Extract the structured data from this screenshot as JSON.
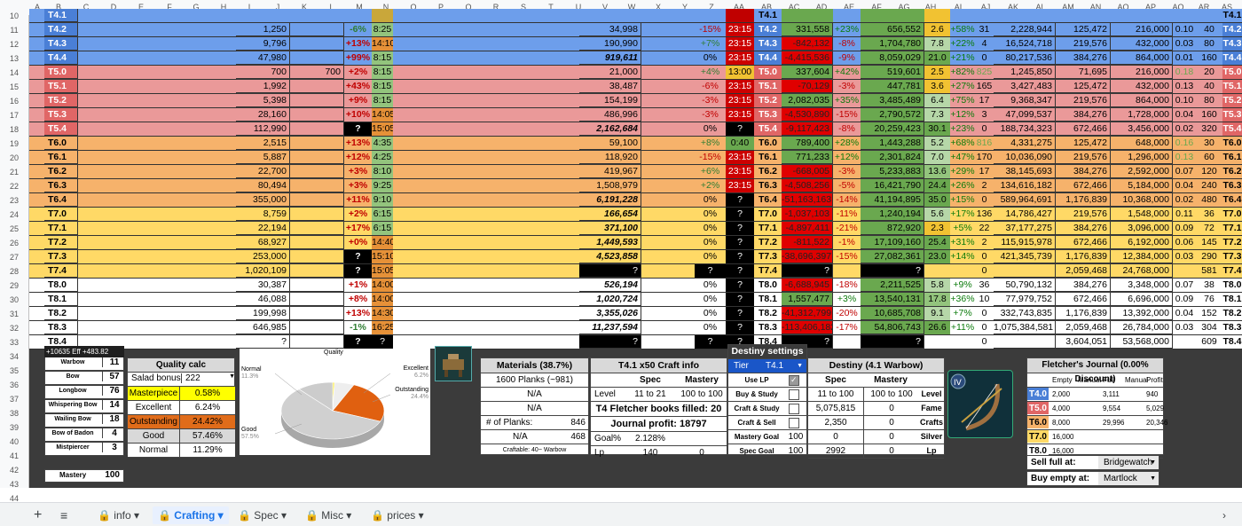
{
  "colheaders": [
    "A",
    "B",
    "C",
    "D",
    "E",
    "F",
    "G",
    "H",
    "I",
    "J",
    "K",
    "L",
    "M",
    "N",
    "O",
    "P",
    "Q",
    "R",
    "S",
    "T",
    "U",
    "V",
    "W",
    "X",
    "Y",
    "Z",
    "AA",
    "AB",
    "AC",
    "AD",
    "AE",
    "AF",
    "AG",
    "AH",
    "AI",
    "AJ",
    "AK",
    "AL",
    "AM",
    "AN",
    "AO",
    "AP",
    "AQ",
    "AR",
    "AS"
  ],
  "rows": [
    {
      "n": "11",
      "tier": "T4.2",
      "band": "#6d9eeb",
      "i": "1,250",
      "m": "-6%",
      "n2": "8:25",
      "v": "34,998",
      "y": "-15%",
      "z": "23:15",
      "ab": "331,558",
      "ac": "+23%",
      "af": "656,552",
      "ag": "2.6",
      "ah": "+58%",
      "ai": "31",
      "aj": "2,228,944",
      "al": "125,472",
      "an": "216,000",
      "ao": "0.10",
      "aq": "40"
    },
    {
      "n": "12",
      "tier": "T4.3",
      "band": "#6d9eeb",
      "i": "9,796",
      "m": "+13%",
      "n2": "14:10",
      "v": "190,990",
      "y": "+7%",
      "z": "23:15",
      "ab": "-842,132",
      "ac": "-8%",
      "af": "1,704,780",
      "ag": "7.8",
      "ah": "+22%",
      "ai": "4",
      "aj": "16,524,718",
      "al": "219,576",
      "an": "432,000",
      "ao": "0.03",
      "aq": "80"
    },
    {
      "n": "13",
      "tier": "T4.4",
      "band": "#6d9eeb",
      "i": "47,980",
      "m": "+99%",
      "n2": "8:15",
      "v": "919,611",
      "y": "0%",
      "z": "23:15",
      "ab": "-4,415,536",
      "ac": "-9%",
      "af": "8,059,029",
      "ag": "21.0",
      "ah": "+21%",
      "ai": "0",
      "aj": "80,217,536",
      "al": "384,276",
      "an": "864,000",
      "ao": "0.01",
      "aq": "160"
    },
    {
      "n": "14",
      "tier": "T5.0",
      "band": "#ea9999",
      "i": "700",
      "k": "700",
      "m": "+2%",
      "n2": "8:15",
      "v": "21,000",
      "y": "+4%",
      "z": "13:00",
      "ab": "337,604",
      "ac": "+42%",
      "af": "519,601",
      "ag": "2.5",
      "ah": "+82%",
      "ai": "825",
      "aj": "1,245,850",
      "al": "71,695",
      "an": "216,000",
      "ao": "0.18",
      "aq": "20"
    },
    {
      "n": "15",
      "tier": "T5.1",
      "band": "#ea9999",
      "i": "1,992",
      "m": "+43%",
      "n2": "8:15",
      "v": "38,487",
      "y": "-6%",
      "z": "23:15",
      "ab": "-70,129",
      "ac": "-3%",
      "af": "447,781",
      "ag": "3.6",
      "ah": "+27%",
      "ai": "165",
      "aj": "3,427,483",
      "al": "125,472",
      "an": "432,000",
      "ao": "0.13",
      "aq": "40"
    },
    {
      "n": "16",
      "tier": "T5.2",
      "band": "#ea9999",
      "i": "5,398",
      "m": "+9%",
      "n2": "8:15",
      "v": "154,199",
      "y": "-3%",
      "z": "23:15",
      "ab": "2,082,035",
      "ac": "+35%",
      "af": "3,485,489",
      "ag": "6.4",
      "ah": "+75%",
      "ai": "17",
      "aj": "9,368,347",
      "al": "219,576",
      "an": "864,000",
      "ao": "0.10",
      "aq": "80"
    },
    {
      "n": "17",
      "tier": "T5.3",
      "band": "#ea9999",
      "i": "28,160",
      "m": "+10%",
      "n2": "14:05",
      "v": "486,996",
      "y": "-3%",
      "z": "23:15",
      "ab": "-4,530,890",
      "ac": "-15%",
      "af": "2,790,572",
      "ag": "7.3",
      "ah": "+12%",
      "ai": "3",
      "aj": "47,099,537",
      "al": "384,276",
      "an": "1,728,000",
      "ao": "0.04",
      "aq": "160"
    },
    {
      "n": "18",
      "tier": "T5.4",
      "band": "#ea9999",
      "i": "112,990",
      "m": "?",
      "n2": "15:05",
      "v": "2,162,684",
      "y": "0%",
      "z": "?",
      "ab": "-9,117,423",
      "ac": "-8%",
      "af": "20,259,423",
      "ag": "30.1",
      "ah": "+23%",
      "ai": "0",
      "aj": "188,734,323",
      "al": "672,466",
      "an": "3,456,000",
      "ao": "0.02",
      "aq": "320"
    },
    {
      "n": "19",
      "tier": "T6.0",
      "band": "#f6b26b",
      "i": "2,515",
      "m": "+13%",
      "n2": "4:35",
      "v": "59,100",
      "y": "+8%",
      "z": "0:40",
      "ab": "789,400",
      "ac": "+28%",
      "af": "1,443,288",
      "ag": "5.2",
      "ah": "+68%",
      "ai": "816",
      "aj": "4,331,275",
      "al": "125,472",
      "an": "648,000",
      "ao": "0.16",
      "aq": "30"
    },
    {
      "n": "20",
      "tier": "T6.1",
      "band": "#f6b26b",
      "i": "5,887",
      "m": "+12%",
      "n2": "4:25",
      "v": "118,920",
      "y": "-15%",
      "z": "23:15",
      "ab": "771,233",
      "ac": "+12%",
      "af": "2,301,824",
      "ag": "7.0",
      "ah": "+47%",
      "ai": "170",
      "aj": "10,036,090",
      "al": "219,576",
      "an": "1,296,000",
      "ao": "0.13",
      "aq": "60"
    },
    {
      "n": "21",
      "tier": "T6.2",
      "band": "#f6b26b",
      "i": "22,700",
      "m": "+3%",
      "n2": "8:10",
      "v": "419,967",
      "y": "+6%",
      "z": "23:15",
      "ab": "-668,005",
      "ac": "-3%",
      "af": "5,233,883",
      "ag": "13.6",
      "ah": "+29%",
      "ai": "17",
      "aj": "38,145,693",
      "al": "384,276",
      "an": "2,592,000",
      "ao": "0.07",
      "aq": "120"
    },
    {
      "n": "22",
      "tier": "T6.3",
      "band": "#f6b26b",
      "i": "80,494",
      "m": "+3%",
      "n2": "9:25",
      "v": "1,508,979",
      "y": "+2%",
      "z": "23:15",
      "ab": "-4,508,256",
      "ac": "-5%",
      "af": "16,421,790",
      "ag": "24.4",
      "ah": "+26%",
      "ai": "2",
      "aj": "134,616,182",
      "al": "672,466",
      "an": "5,184,000",
      "ao": "0.04",
      "aq": "240"
    },
    {
      "n": "23",
      "tier": "T6.4",
      "band": "#f6b26b",
      "i": "355,000",
      "m": "+11%",
      "n2": "9:10",
      "v": "6,191,228",
      "y": "0%",
      "z": "?",
      "ab": "-51,163,163",
      "ac": "-14%",
      "af": "41,194,895",
      "ag": "35.0",
      "ah": "+15%",
      "ai": "0",
      "aj": "589,964,691",
      "al": "1,176,839",
      "an": "10,368,000",
      "ao": "0.02",
      "aq": "480"
    },
    {
      "n": "24",
      "tier": "T7.0",
      "band": "#ffd966",
      "i": "8,759",
      "m": "+2%",
      "n2": "6:15",
      "v": "166,654",
      "y": "0%",
      "z": "?",
      "ab": "-1,037,103",
      "ac": "-11%",
      "af": "1,240,194",
      "ag": "5.6",
      "ah": "+17%",
      "ai": "136",
      "aj": "14,786,427",
      "al": "219,576",
      "an": "1,548,000",
      "ao": "0.11",
      "aq": "36"
    },
    {
      "n": "25",
      "tier": "T7.1",
      "band": "#ffd966",
      "i": "22,194",
      "m": "+17%",
      "n2": "6:15",
      "v": "371,100",
      "y": "0%",
      "z": "?",
      "ab": "-4,897,411",
      "ac": "-21%",
      "af": "872,920",
      "ag": "2.3",
      "ah": "+5%",
      "ai": "22",
      "aj": "37,177,275",
      "al": "384,276",
      "an": "3,096,000",
      "ao": "0.09",
      "aq": "72"
    },
    {
      "n": "26",
      "tier": "T7.2",
      "band": "#ffd966",
      "i": "68,927",
      "m": "+0%",
      "n2": "14:40",
      "v": "1,449,593",
      "y": "0%",
      "z": "?",
      "ab": "-811,522",
      "ac": "-1%",
      "af": "17,109,160",
      "ag": "25.4",
      "ah": "+31%",
      "ai": "2",
      "aj": "115,915,978",
      "al": "672,466",
      "an": "6,192,000",
      "ao": "0.06",
      "aq": "145"
    },
    {
      "n": "27",
      "tier": "T7.3",
      "band": "#ffd966",
      "i": "253,000",
      "m": "?",
      "n2": "15:10",
      "v": "4,523,858",
      "y": "0%",
      "z": "?",
      "ab": "-38,696,397",
      "ac": "-15%",
      "af": "27,082,361",
      "ag": "23.0",
      "ah": "+14%",
      "ai": "0",
      "aj": "421,345,739",
      "al": "1,176,839",
      "an": "12,384,000",
      "ao": "0.03",
      "aq": "290"
    },
    {
      "n": "28",
      "tier": "T7.4",
      "band": "#ffd966",
      "i": "1,020,109",
      "m": "?",
      "n2": "15:05",
      "v": "?",
      "y": "?",
      "z": "?",
      "ab": "?",
      "ac": "",
      "af": "?",
      "ag": "",
      "ah": "",
      "ai": "0",
      "aj": "",
      "al": "2,059,468",
      "an": "24,768,000",
      "ao": "",
      "aq": "581"
    },
    {
      "n": "29",
      "tier": "T8.0",
      "band": "#ffffff",
      "i": "30,387",
      "m": "+1%",
      "n2": "14:00",
      "v": "526,194",
      "y": "0%",
      "z": "?",
      "ab": "-6,688,945",
      "ac": "-18%",
      "af": "2,211,525",
      "ag": "5.8",
      "ah": "+9%",
      "ai": "36",
      "aj": "50,790,132",
      "al": "384,276",
      "an": "3,348,000",
      "ao": "0.07",
      "aq": "38"
    },
    {
      "n": "30",
      "tier": "T8.1",
      "band": "#ffffff",
      "i": "46,088",
      "m": "+8%",
      "n2": "14:00",
      "v": "1,020,724",
      "y": "0%",
      "z": "?",
      "ab": "1,557,477",
      "ac": "+3%",
      "af": "13,540,131",
      "ag": "17.8",
      "ah": "+36%",
      "ai": "10",
      "aj": "77,979,752",
      "al": "672,466",
      "an": "6,696,000",
      "ao": "0.09",
      "aq": "76"
    },
    {
      "n": "31",
      "tier": "T8.2",
      "band": "#ffffff",
      "i": "199,998",
      "m": "+13%",
      "n2": "14:30",
      "v": "3,355,026",
      "y": "0%",
      "z": "?",
      "ab": "-41,312,799",
      "ac": "-20%",
      "af": "10,685,708",
      "ag": "9.1",
      "ah": "+7%",
      "ai": "0",
      "aj": "332,743,835",
      "al": "1,176,839",
      "an": "13,392,000",
      "ao": "0.04",
      "aq": "152"
    },
    {
      "n": "32",
      "tier": "T8.3",
      "band": "#ffffff",
      "i": "646,985",
      "m": "-1%",
      "n2": "16:25",
      "v": "11,237,594",
      "y": "0%",
      "z": "?",
      "ab": "-113,406,182",
      "ac": "-17%",
      "af": "54,806,743",
      "ag": "26.6",
      "ah": "+11%",
      "ai": "0",
      "aj": "1,075,384,581",
      "al": "2,059,468",
      "an": "26,784,000",
      "ao": "0.03",
      "aq": "304"
    },
    {
      "n": "33",
      "tier": "T8.4",
      "band": "#ffffff",
      "i": "?",
      "m": "?",
      "n2": "?",
      "v": "?",
      "y": "?",
      "z": "?",
      "ab": "?",
      "ac": "",
      "af": "?",
      "ag": "",
      "ah": "",
      "ai": "0",
      "aj": "",
      "al": "3,604,051",
      "an": "53,568,000",
      "ao": "",
      "aq": "609"
    }
  ],
  "toprow": {
    "n": "10",
    "tier": "T4.1"
  },
  "extrarows": [
    "34",
    "35",
    "36",
    "37",
    "38",
    "39",
    "40",
    "41",
    "42",
    "43",
    "44"
  ],
  "banner": "+10635 Eff +483.82 Quality",
  "weapons": [
    {
      "name": "Warbow",
      "val": "11"
    },
    {
      "name": "Bow",
      "val": "57"
    },
    {
      "name": "Longbow",
      "val": "76"
    },
    {
      "name": "Whispering Bow",
      "val": "14"
    },
    {
      "name": "Wailing Bow",
      "val": "18"
    },
    {
      "name": "Bow of Badon",
      "val": "4"
    },
    {
      "name": "Mistpiercer",
      "val": "3"
    }
  ],
  "mastery": {
    "label": "Mastery",
    "val": "100"
  },
  "quality": {
    "title": "Quality calc",
    "salad_label": "Salad bonus",
    "salad_val": "222",
    "rows": [
      {
        "label": "Masterpiece",
        "val": "0.58%",
        "color": "#ffff00"
      },
      {
        "label": "Excellent",
        "val": "6.24%",
        "color": "#ffffff"
      },
      {
        "label": "Outstanding",
        "val": "24.42%",
        "color": "#e06c1a"
      },
      {
        "label": "Good",
        "val": "57.46%",
        "color": "#d9d9d9"
      },
      {
        "label": "Normal",
        "val": "11.29%",
        "color": "#ffffff"
      }
    ]
  },
  "pie": {
    "title": "Quality",
    "labels": [
      {
        "name": "Normal",
        "pct": "11.3%"
      },
      {
        "name": "Excellent",
        "pct": "6.2%"
      },
      {
        "name": "Outstanding",
        "pct": "24.4%"
      },
      {
        "name": "Good",
        "pct": "57.5%"
      }
    ]
  },
  "chart_data": {
    "type": "pie",
    "title": "Quality",
    "categories": [
      "Normal",
      "Excellent",
      "Outstanding",
      "Good",
      "Masterpiece"
    ],
    "values": [
      11.3,
      6.2,
      24.4,
      57.5,
      0.58
    ]
  },
  "materials": {
    "title": "Materials (38.7%)",
    "planks": "1600 Planks (~981)",
    "na1": "N/A",
    "na2": "N/A",
    "num_label": "# of Planks:",
    "num_val": "846",
    "na3": "N/A",
    "na3_val": "468",
    "craftable": "Craftable: 40~ Warbow"
  },
  "craft": {
    "title": "T4.1 x50 Craft info",
    "spec": "Spec",
    "mastery": "Mastery",
    "level_label": "Level",
    "level_spec": "11 to 21",
    "level_mast": "100 to 100",
    "books": "T4 Fletcher books filled: 20",
    "profit": "Journal profit: 18797",
    "goal_label": "Goal%",
    "goal_val": "2.128%",
    "lp_label": "Lp",
    "lp_spec": "140",
    "lp_mast": "0"
  },
  "destiny_settings": {
    "title": "Destiny settings",
    "tier_label": "Tier",
    "tier_val": "T4.1",
    "rows": [
      "Use LP",
      "Buy & Study",
      "Craft & Study",
      "Craft & Sell"
    ],
    "mgoal_label": "Mastery Goal",
    "mgoal_val": "100",
    "sgoal_label": "Spec Goal",
    "sgoal_val": "100"
  },
  "destiny": {
    "title": "Destiny (4.1 Warbow)",
    "spec": "Spec",
    "mastery": "Mastery",
    "rows": [
      {
        "spec": "11 to 100",
        "mast": "100 to 100",
        "label": "Level"
      },
      {
        "spec": "5,075,815",
        "mast": "0",
        "label": "Fame"
      },
      {
        "spec": "2,350",
        "mast": "0",
        "label": "Crafts"
      },
      {
        "spec": "0",
        "mast": "0",
        "label": "Silver"
      },
      {
        "spec": "2992",
        "mast": "0",
        "label": "Lp"
      }
    ]
  },
  "journal": {
    "title": "Fletcher's Journal (0.00% Discount)",
    "headers": [
      "Empty",
      "Manual",
      "Full",
      "Manual",
      "Profit"
    ],
    "rows": [
      {
        "tier": "T4.0",
        "color": "#4a7fd6",
        "empty": "2,000",
        "full": "3,111",
        "profit": "940"
      },
      {
        "tier": "T5.0",
        "color": "#e06666",
        "empty": "4,000",
        "full": "9,554",
        "profit": "5,029"
      },
      {
        "tier": "T6.0",
        "color": "#f6b26b",
        "empty": "8,000",
        "full": "29,996",
        "profit": "20,346"
      },
      {
        "tier": "T7.0",
        "color": "#ffd966",
        "empty": "16,000",
        "full": "",
        "profit": ""
      },
      {
        "tier": "T8.0",
        "color": "#ffffff",
        "empty": "16,000",
        "full": "",
        "profit": ""
      }
    ],
    "sell_label": "Sell full at:",
    "sell_val": "Bridgewatch",
    "buy_label": "Buy empty at:",
    "buy_val": "Martlock"
  },
  "tabs": [
    {
      "label": "info"
    },
    {
      "label": "Crafting"
    },
    {
      "label": "Spec"
    },
    {
      "label": "Misc"
    },
    {
      "label": "prices"
    }
  ]
}
